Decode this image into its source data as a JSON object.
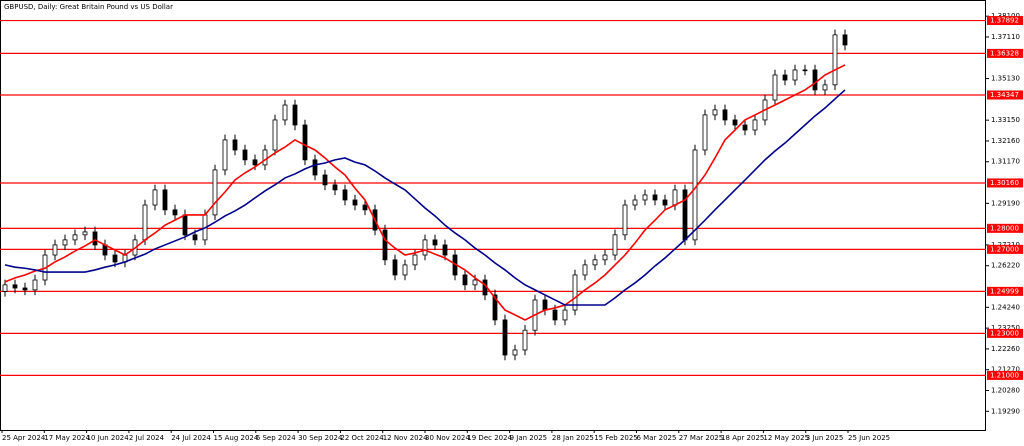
{
  "chart_data": {
    "type": "candlestick",
    "title": "GBPUSD, Daily:  Great Britain Pound vs US Dollar",
    "ylim": [
      1.184,
      1.3887
    ],
    "yticks": [
      {
        "value": 1.381,
        "label": "1.38100"
      },
      {
        "value": 1.3711,
        "label": "1.37110"
      },
      {
        "value": 1.3513,
        "label": "1.35130"
      },
      {
        "value": 1.3315,
        "label": "1.33150"
      },
      {
        "value": 1.3216,
        "label": "1.32160"
      },
      {
        "value": 1.3117,
        "label": "1.31170"
      },
      {
        "value": 1.2919,
        "label": "1.29190"
      },
      {
        "value": 1.2721,
        "label": "1.27210"
      },
      {
        "value": 1.2622,
        "label": "1.26220"
      },
      {
        "value": 1.2424,
        "label": "1.24240"
      },
      {
        "value": 1.2325,
        "label": "1.23250"
      },
      {
        "value": 1.2226,
        "label": "1.22260"
      },
      {
        "value": 1.2127,
        "label": "1.21270"
      },
      {
        "value": 1.2028,
        "label": "1.20280"
      },
      {
        "value": 1.1929,
        "label": "1.19290"
      }
    ],
    "xticks": [
      "25 Apr 2024",
      "17 May 2024",
      "10 Jun 2024",
      "2 Jul 2024",
      "24 Jul 2024",
      "15 Aug 2024",
      "6 Sep 2024",
      "30 Sep 2024",
      "22 Oct 2024",
      "12 Nov 2024",
      "30 Nov 2024",
      "19 Dec 2024",
      "9 Jan 2025",
      "28 Jan 2025",
      "15 Feb 2025",
      "6 Mar 2025",
      "27 Mar 2025",
      "18 Apr 2025",
      "12 May 2025",
      "3 Jun 2025",
      "25 Jun 2025"
    ],
    "candle_color": "#000000",
    "candles": {
      "open": [
        1.25,
        1.2531,
        1.2516,
        1.2507,
        1.2554,
        1.2673,
        1.2721,
        1.2745,
        1.2769,
        1.2783,
        1.2721,
        1.2673,
        1.264,
        1.2673,
        1.2745,
        1.2911,
        1.2983,
        1.2888,
        1.2864,
        1.2769,
        1.2745,
        1.2864,
        1.3078,
        1.3221,
        1.3173,
        1.3126,
        1.3102,
        1.3173,
        1.3316,
        1.3387,
        1.3292,
        1.3126,
        1.3054,
        1.3007,
        1.2983,
        1.2935,
        1.2911,
        1.2888,
        1.2792,
        1.265,
        1.2578,
        1.2626,
        1.2673,
        1.2745,
        1.2721,
        1.2673,
        1.2578,
        1.2531,
        1.2554,
        1.2483,
        1.2364,
        1.2197,
        1.2221,
        1.2315,
        1.2459,
        1.2411,
        1.2364,
        1.2411,
        1.2578,
        1.2626,
        1.265,
        1.2673,
        1.2769,
        1.2911,
        1.2935,
        1.2959,
        1.2935,
        1.2911,
        1.2983,
        1.2745,
        1.3173,
        1.334,
        1.3364,
        1.3316,
        1.3292,
        1.3268,
        1.3316,
        1.3411,
        1.353,
        1.3506,
        1.3554,
        1.3554,
        1.3459,
        1.3483,
        1.3721
      ],
      "high": [
        1.2556,
        1.2556,
        1.2541,
        1.2579,
        1.2698,
        1.2746,
        1.277,
        1.2794,
        1.2808,
        1.2808,
        1.2746,
        1.2698,
        1.2698,
        1.277,
        1.2936,
        1.3008,
        1.3008,
        1.2913,
        1.2889,
        1.2794,
        1.2889,
        1.3103,
        1.3246,
        1.3246,
        1.3198,
        1.3151,
        1.3198,
        1.3341,
        1.3412,
        1.3412,
        1.3317,
        1.3151,
        1.3079,
        1.3032,
        1.3008,
        1.296,
        1.2936,
        1.2913,
        1.2817,
        1.2675,
        1.2651,
        1.2698,
        1.277,
        1.277,
        1.2746,
        1.2698,
        1.2603,
        1.2579,
        1.2579,
        1.2508,
        1.2389,
        1.2246,
        1.234,
        1.2484,
        1.2484,
        1.2436,
        1.2436,
        1.2603,
        1.2651,
        1.2675,
        1.2698,
        1.2794,
        1.2936,
        1.296,
        1.2984,
        1.2984,
        1.296,
        1.3008,
        1.3008,
        1.3198,
        1.3365,
        1.3389,
        1.3389,
        1.3341,
        1.3317,
        1.3341,
        1.3436,
        1.3555,
        1.3555,
        1.3579,
        1.3579,
        1.3579,
        1.3508,
        1.3746,
        1.3746
      ],
      "low": [
        1.2475,
        1.2491,
        1.2482,
        1.2482,
        1.2529,
        1.2648,
        1.2696,
        1.272,
        1.2744,
        1.2696,
        1.2648,
        1.2615,
        1.2615,
        1.2648,
        1.272,
        1.2886,
        1.2863,
        1.2839,
        1.2744,
        1.272,
        1.272,
        1.2839,
        1.3053,
        1.3148,
        1.3101,
        1.3077,
        1.3077,
        1.3148,
        1.3291,
        1.3267,
        1.3101,
        1.3029,
        1.2982,
        1.2958,
        1.291,
        1.2886,
        1.2863,
        1.2767,
        1.2625,
        1.2553,
        1.2553,
        1.2601,
        1.2648,
        1.2696,
        1.2648,
        1.2553,
        1.2506,
        1.2506,
        1.2458,
        1.2339,
        1.2172,
        1.2172,
        1.2196,
        1.229,
        1.2386,
        1.2339,
        1.2339,
        1.2386,
        1.2553,
        1.2601,
        1.2625,
        1.2648,
        1.2744,
        1.2886,
        1.291,
        1.291,
        1.2886,
        1.2886,
        1.272,
        1.272,
        1.3148,
        1.3315,
        1.3291,
        1.3267,
        1.3243,
        1.3243,
        1.3291,
        1.3386,
        1.3481,
        1.3481,
        1.3529,
        1.3434,
        1.3434,
        1.3458,
        1.3648
      ],
      "close": [
        1.2531,
        1.2516,
        1.2507,
        1.2554,
        1.2673,
        1.2721,
        1.2745,
        1.2769,
        1.2783,
        1.2721,
        1.2673,
        1.264,
        1.2673,
        1.2745,
        1.2911,
        1.2983,
        1.2888,
        1.2864,
        1.2769,
        1.2745,
        1.2864,
        1.3078,
        1.3221,
        1.3173,
        1.3126,
        1.3102,
        1.3173,
        1.3316,
        1.3387,
        1.3292,
        1.3126,
        1.3054,
        1.3007,
        1.2983,
        1.2935,
        1.2911,
        1.2888,
        1.2792,
        1.265,
        1.2578,
        1.2626,
        1.2673,
        1.2745,
        1.2721,
        1.2673,
        1.2578,
        1.2531,
        1.2554,
        1.2483,
        1.2364,
        1.2197,
        1.2221,
        1.2315,
        1.2459,
        1.2411,
        1.2364,
        1.2411,
        1.2578,
        1.2626,
        1.265,
        1.2673,
        1.2769,
        1.2911,
        1.2935,
        1.2959,
        1.2935,
        1.2911,
        1.2983,
        1.2745,
        1.3173,
        1.334,
        1.3364,
        1.3316,
        1.3292,
        1.3268,
        1.3316,
        1.3411,
        1.353,
        1.3506,
        1.3554,
        1.3554,
        1.3459,
        1.3483,
        1.3721,
        1.3673
      ]
    },
    "series": [
      {
        "color": "#ff0000",
        "values": [
          1.2545,
          1.2564,
          1.2578,
          1.2597,
          1.261,
          1.264,
          1.2664,
          1.2692,
          1.2716,
          1.2745,
          1.2721,
          1.2697,
          1.2673,
          1.2706,
          1.2745,
          1.2778,
          1.2815,
          1.2839,
          1.2864,
          1.2864,
          1.2864,
          1.2921,
          1.2973,
          1.303,
          1.3064,
          1.3092,
          1.3126,
          1.3159,
          1.3187,
          1.3221,
          1.3196,
          1.3173,
          1.3135,
          1.3092,
          1.3054,
          1.2991,
          1.2935,
          1.2839,
          1.2745,
          1.2706,
          1.2673,
          1.2683,
          1.2697,
          1.2677,
          1.2659,
          1.263,
          1.2602,
          1.2564,
          1.2531,
          1.2469,
          1.2411,
          1.2388,
          1.2364,
          1.2388,
          1.2411,
          1.2421,
          1.2435,
          1.2469,
          1.2507,
          1.254,
          1.2578,
          1.2626,
          1.2673,
          1.273,
          1.2792,
          1.2839,
          1.2888,
          1.2911,
          1.2935,
          1.2991,
          1.3054,
          1.3135,
          1.3221,
          1.3268,
          1.3316,
          1.334,
          1.3364,
          1.3387,
          1.3411,
          1.3435,
          1.3459,
          1.3492,
          1.353,
          1.3554,
          1.3578
        ]
      },
      {
        "color": "#00008b",
        "values": [
          1.2626,
          1.2615,
          1.261,
          1.2602,
          1.2592,
          1.2592,
          1.2592,
          1.2592,
          1.2592,
          1.2602,
          1.2615,
          1.2626,
          1.264,
          1.2659,
          1.2677,
          1.2702,
          1.2721,
          1.274,
          1.2759,
          1.2783,
          1.2802,
          1.2829,
          1.2859,
          1.2883,
          1.2911,
          1.2945,
          1.2978,
          1.3007,
          1.304,
          1.3059,
          1.3083,
          1.3102,
          1.3111,
          1.3126,
          1.3135,
          1.3115,
          1.3102,
          1.3073,
          1.304,
          1.3011,
          1.2983,
          1.294,
          1.2897,
          1.2859,
          1.2815,
          1.2778,
          1.2745,
          1.2706,
          1.2673,
          1.2635,
          1.2602,
          1.2564,
          1.2531,
          1.2507,
          1.2483,
          1.2459,
          1.2435,
          1.2435,
          1.2435,
          1.2435,
          1.2435,
          1.2469,
          1.2507,
          1.254,
          1.2578,
          1.2621,
          1.2659,
          1.2702,
          1.2745,
          1.2792,
          1.2839,
          1.2888,
          1.2935,
          1.2983,
          1.303,
          1.3078,
          1.3126,
          1.3168,
          1.3206,
          1.3249,
          1.3292,
          1.3335,
          1.3373,
          1.3416,
          1.3459
        ]
      }
    ],
    "levels": {
      "color": "#ff0000",
      "values": [
        1.37892,
        1.36328,
        1.34347,
        1.3016,
        1.28,
        1.27,
        1.24999,
        1.23,
        1.21
      ],
      "value_labels": [
        "1.37892",
        "1.36328",
        "1.34347",
        "1.30160",
        "1.28000",
        "1.27000",
        "1.24999",
        "1.23000",
        "1.21000"
      ]
    }
  }
}
